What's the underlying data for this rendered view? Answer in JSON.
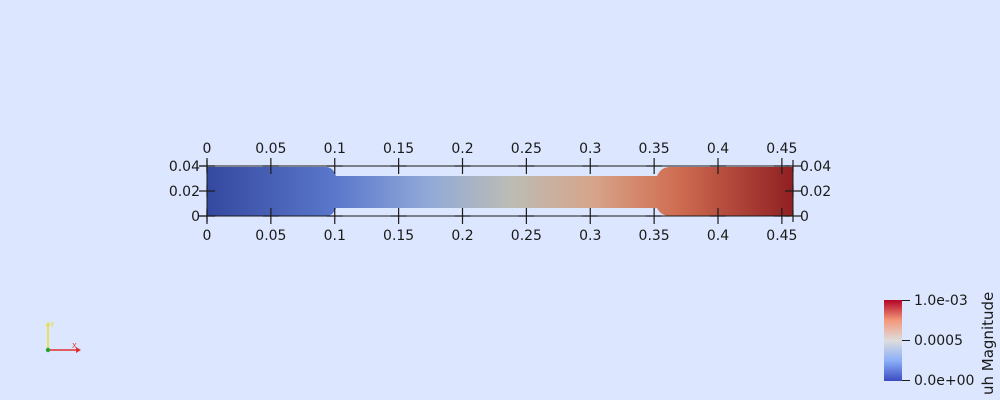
{
  "scene": {
    "background": "#dce6fe",
    "field_name": "uh Magnitude"
  },
  "axes": {
    "x_ticks": [
      "0",
      "0.05",
      "0.1",
      "0.15",
      "0.2",
      "0.25",
      "0.3",
      "0.35",
      "0.4",
      "0.45"
    ],
    "x_values": [
      0,
      0.05,
      0.1,
      0.15,
      0.2,
      0.25,
      0.3,
      0.35,
      0.4,
      0.45
    ],
    "y_ticks": [
      "0",
      "0.02",
      "0.04"
    ],
    "y_values": [
      0,
      0.02,
      0.04
    ],
    "x_range": [
      0,
      0.46
    ],
    "y_range": [
      0,
      0.04
    ]
  },
  "colorbar": {
    "title": "uh Magnitude",
    "labels": {
      "max": "1.0e-03",
      "mid": "0.0005",
      "min": "0.0e+00"
    },
    "colors": [
      "#3b4cc0",
      "#8caff9",
      "#dddddd",
      "#f4987a",
      "#b40426"
    ]
  },
  "orientation_axes": {
    "x_color": "#e0302c",
    "y_color": "#e8e020",
    "z_color": "#2ca02c"
  }
}
